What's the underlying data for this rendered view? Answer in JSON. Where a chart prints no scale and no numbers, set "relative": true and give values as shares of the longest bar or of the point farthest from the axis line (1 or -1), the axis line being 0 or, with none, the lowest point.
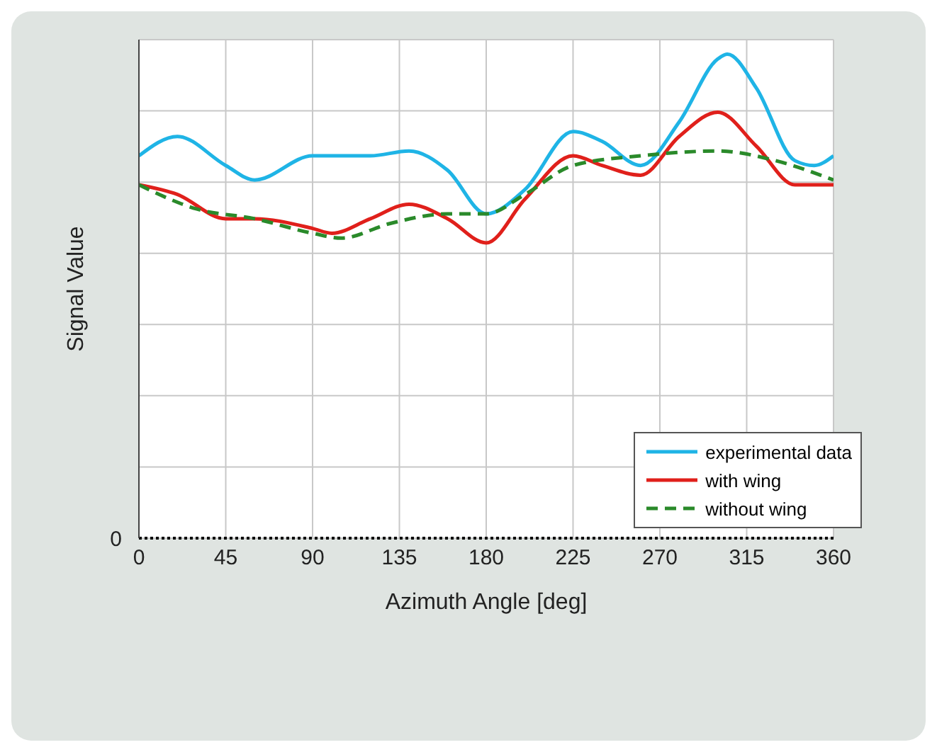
{
  "chart_data": {
    "type": "line",
    "relative": true,
    "xlabel": "Azimuth Angle [deg]",
    "ylabel": "Signal Value",
    "xlim": [
      0,
      360
    ],
    "xticks": [
      0,
      45,
      90,
      135,
      180,
      225,
      270,
      315,
      360
    ],
    "annotations": [
      "0"
    ],
    "grid": true,
    "legend": "bottom right",
    "series": [
      {
        "name": "experimental data",
        "color": "#1fb4e6",
        "line_style": "solid",
        "x": [
          0,
          20,
          45,
          60,
          90,
          120,
          140,
          160,
          180,
          200,
          225,
          240,
          260,
          280,
          300,
          305,
          320,
          340,
          350,
          360
        ],
        "values": [
          0.79,
          0.83,
          0.77,
          0.74,
          0.79,
          0.79,
          0.8,
          0.76,
          0.67,
          0.72,
          0.84,
          0.82,
          0.77,
          0.86,
          0.99,
          1,
          0.93,
          0.78,
          0.77,
          0.79
        ]
      },
      {
        "name": "with wing",
        "color": "#e0201b",
        "line_style": "solid",
        "x": [
          0,
          20,
          45,
          60,
          90,
          100,
          120,
          140,
          160,
          180,
          200,
          225,
          240,
          260,
          280,
          300,
          320,
          340,
          360
        ],
        "values": [
          0.73,
          0.71,
          0.66,
          0.66,
          0.64,
          0.63,
          0.66,
          0.69,
          0.66,
          0.61,
          0.7,
          0.79,
          0.77,
          0.75,
          0.83,
          0.88,
          0.81,
          0.73,
          0.73
        ]
      },
      {
        "name": "without wing",
        "color": "#2a8a2a",
        "line_style": "dashed",
        "x": [
          0,
          30,
          60,
          90,
          105,
          130,
          160,
          180,
          200,
          225,
          260,
          300,
          330,
          360
        ],
        "values": [
          0.73,
          0.68,
          0.66,
          0.63,
          0.62,
          0.65,
          0.67,
          0.67,
          0.71,
          0.77,
          0.79,
          0.8,
          0.78,
          0.74
        ]
      }
    ]
  }
}
